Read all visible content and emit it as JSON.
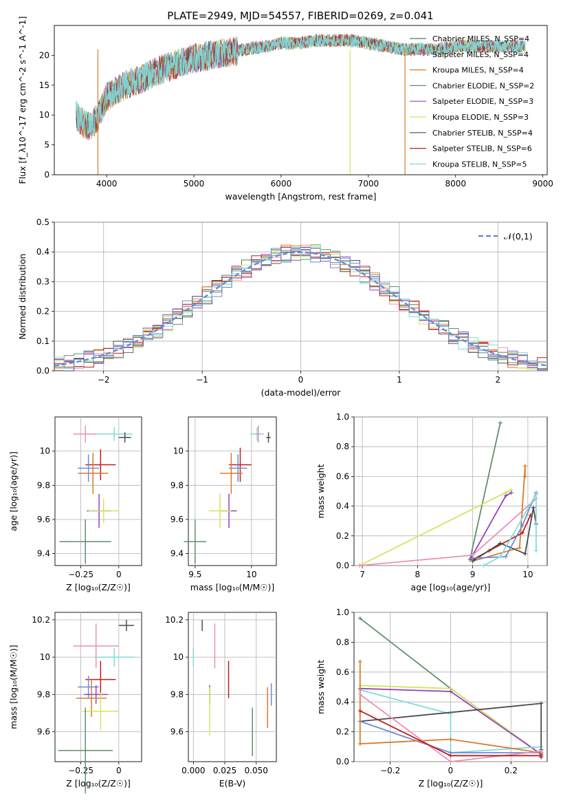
{
  "figure": {
    "title": "PLATE=2949, MJD=54557, FIBERID=0269, z=0.041"
  },
  "colors": {
    "c0": "#4d7a5c",
    "c1": "#e98fb9",
    "c2": "#d97a2b",
    "c3": "#5e8f6c",
    "c4": "#9a3fbf",
    "c5": "#cde85a",
    "c6": "#4b4b4b",
    "c7": "#c01c1c",
    "c8": "#7fdcdc",
    "blue": "#6b8bd6"
  },
  "chart_data": [
    {
      "id": "spectrum",
      "type": "line",
      "xlabel": "wavelength [Angstrom, rest frame]",
      "ylabel": "Flux [f_λ10^-17 erg cm^-2 s^-1 A^-1]",
      "xlim": [
        3400,
        9050
      ],
      "ylim": [
        0,
        25
      ],
      "xticks": [
        4000,
        5000,
        6000,
        7000,
        8000,
        9000
      ],
      "yticks": [
        0,
        5,
        10,
        15,
        20
      ],
      "grid": false,
      "legend_position": "right",
      "series": [
        {
          "name": "Chabrier MILES, N_SSP=4",
          "color": "#4d7a5c"
        },
        {
          "name": "Salpeter MILES, N_SSP=4",
          "color": "#e98fb9"
        },
        {
          "name": "Kroupa MILES, N_SSP=4",
          "color": "#d97a2b"
        },
        {
          "name": "Chabrier ELODIE, N_SSP=2",
          "color": "#5e8f6c"
        },
        {
          "name": "Salpeter ELODIE, N_SSP=3",
          "color": "#9a3fbf"
        },
        {
          "name": "Kroupa ELODIE, N_SSP=3",
          "color": "#cde85a"
        },
        {
          "name": "Chabrier STELIB, N_SSP=4",
          "color": "#4b4b4b"
        },
        {
          "name": "Salpeter STELIB, N_SSP=6",
          "color": "#c01c1c"
        },
        {
          "name": "Kroupa STELIB, N_SSP=5",
          "color": "#7fdcdc"
        }
      ],
      "continuum": {
        "x": [
          3650,
          3700,
          3800,
          3900,
          4000,
          4200,
          4400,
          4600,
          4800,
          5000,
          5200,
          5400,
          5600,
          5800,
          6000,
          6200,
          6400,
          6600,
          6800,
          7000,
          7200,
          7400,
          7600,
          7800,
          8000,
          8200,
          8400,
          8600,
          8800
        ],
        "y": [
          10,
          9,
          8,
          9.5,
          13,
          15,
          16,
          17.5,
          18.5,
          19.5,
          20,
          20.5,
          21,
          21.5,
          22,
          22,
          22.5,
          22.5,
          22.5,
          22,
          21.5,
          21,
          21,
          21,
          21.5,
          21.5,
          21.5,
          21.5,
          21.5
        ]
      },
      "drops": [
        {
          "x": 3900,
          "y": 0
        },
        {
          "x": 6790,
          "y": 0
        },
        {
          "x": 7420,
          "y": 0
        }
      ]
    },
    {
      "id": "residuals",
      "type": "histogram",
      "xlabel": "(data-model)/error",
      "ylabel": "Normed distribution",
      "xlim": [
        -2.5,
        2.5
      ],
      "ylim": [
        0,
        0.5
      ],
      "xticks": [
        -2,
        -1,
        0,
        1,
        2
      ],
      "yticks": [
        0.0,
        0.1,
        0.2,
        0.3,
        0.4,
        0.5
      ],
      "grid": true,
      "bin_width": 0.1,
      "legend": "𝒩(0,1)",
      "legend_position": "top-right",
      "reference_curve": "gaussian mean 0 sigma 1",
      "reference_color": "#6b8bd6"
    },
    {
      "id": "age-z",
      "type": "scatter",
      "xlabel": "Z [log₁₀(Z/Z☉)]",
      "ylabel": "age  [log₁₀(age/yr)]",
      "xlim": [
        -0.42,
        0.15
      ],
      "ylim": [
        9.33,
        10.2
      ],
      "xticks": [
        -0.25,
        0.0
      ],
      "yticks": [
        9.4,
        9.6,
        9.8,
        10.0
      ],
      "grid": true,
      "points": [
        {
          "x": -0.22,
          "y": 10.1,
          "xerr": 0.08,
          "yerr": 0.05,
          "color": "#e98fb9"
        },
        {
          "x": -0.03,
          "y": 10.1,
          "xerr": 0.12,
          "yerr": 0.04,
          "color": "#7fdcdc"
        },
        {
          "x": 0.04,
          "y": 10.08,
          "xerr": 0.04,
          "yerr": 0.03,
          "color": "#4b4b4b"
        },
        {
          "x": -0.12,
          "y": 9.92,
          "xerr": 0.1,
          "yerr": 0.09,
          "color": "#c01c1c"
        },
        {
          "x": -0.2,
          "y": 9.9,
          "xerr": 0.07,
          "yerr": 0.08,
          "color": "#6b8bd6"
        },
        {
          "x": -0.17,
          "y": 9.87,
          "xerr": 0.1,
          "yerr": 0.12,
          "color": "#d97a2b"
        },
        {
          "x": -0.13,
          "y": 9.65,
          "xerr": 0.08,
          "yerr": 0.1,
          "color": "#9a3fbf"
        },
        {
          "x": -0.1,
          "y": 9.65,
          "xerr": 0.1,
          "yerr": 0.07,
          "color": "#cde85a"
        },
        {
          "x": -0.22,
          "y": 9.47,
          "xerr": 0.17,
          "yerr": 0.13,
          "color": "#5e8f6c"
        }
      ]
    },
    {
      "id": "age-mass",
      "type": "scatter",
      "xlabel": "mass [log₁₀(M/M☉)]",
      "ylabel": "",
      "xlim": [
        9.44,
        10.22
      ],
      "ylim": [
        9.33,
        10.2
      ],
      "xticks": [
        9.5,
        10.0
      ],
      "yticks": [
        9.4,
        9.6,
        9.8,
        10.0
      ],
      "grid": true,
      "points": [
        {
          "x": 10.05,
          "y": 10.1,
          "xerr": 0.06,
          "yerr": 0.04,
          "color": "#7fdcdc"
        },
        {
          "x": 10.15,
          "y": 10.08,
          "xerr": 0.02,
          "yerr": 0.03,
          "color": "#4b4b4b"
        },
        {
          "x": 10.06,
          "y": 10.1,
          "xerr": 0.02,
          "yerr": 0.05,
          "color": "#e98fb9"
        },
        {
          "x": 9.9,
          "y": 9.92,
          "xerr": 0.1,
          "yerr": 0.1,
          "color": "#c01c1c"
        },
        {
          "x": 9.88,
          "y": 9.9,
          "xerr": 0.08,
          "yerr": 0.08,
          "color": "#6b8bd6"
        },
        {
          "x": 9.82,
          "y": 9.87,
          "xerr": 0.1,
          "yerr": 0.12,
          "color": "#d97a2b"
        },
        {
          "x": 9.8,
          "y": 9.65,
          "xerr": 0.07,
          "yerr": 0.1,
          "color": "#9a3fbf"
        },
        {
          "x": 9.72,
          "y": 9.65,
          "xerr": 0.1,
          "yerr": 0.1,
          "color": "#cde85a"
        },
        {
          "x": 9.5,
          "y": 9.47,
          "xerr": 0.1,
          "yerr": 0.13,
          "color": "#5e8f6c"
        }
      ]
    },
    {
      "id": "weight-age",
      "type": "line",
      "xlabel": "age  [log₁₀(age/yr)]",
      "ylabel": "mass weight",
      "xlim": [
        6.85,
        10.35
      ],
      "ylim": [
        0,
        1.0
      ],
      "xticks": [
        7,
        8,
        9,
        10
      ],
      "yticks": [
        0.0,
        0.2,
        0.4,
        0.6,
        0.8,
        1.0
      ],
      "grid": true,
      "series": [
        {
          "color": "#5e8f6c",
          "x": [
            8.95,
            9.5
          ],
          "y": [
            0.04,
            0.96
          ]
        },
        {
          "color": "#cde85a",
          "x": [
            6.95,
            9.7,
            9.6
          ],
          "y": [
            0.0,
            0.51,
            0.49
          ]
        },
        {
          "color": "#9a3fbf",
          "x": [
            8.97,
            9.6,
            9.7
          ],
          "y": [
            0.05,
            0.47,
            0.49
          ]
        },
        {
          "color": "#e98fb9",
          "x": [
            6.95,
            9.0,
            10.15
          ],
          "y": [
            0.0,
            0.07,
            0.45
          ]
        },
        {
          "color": "#d97a2b",
          "x": [
            9.0,
            9.85,
            9.95,
            9.95
          ],
          "y": [
            0.03,
            0.12,
            0.67,
            0.6
          ]
        },
        {
          "color": "#c01c1c",
          "x": [
            9.0,
            9.3,
            9.9,
            10.05
          ],
          "y": [
            0.04,
            0.1,
            0.22,
            0.34
          ]
        },
        {
          "color": "#4b4b4b",
          "x": [
            9.0,
            9.5,
            9.95,
            10.1,
            10.15
          ],
          "y": [
            0.03,
            0.15,
            0.08,
            0.39,
            0.28
          ]
        },
        {
          "color": "#6b8bd6",
          "x": [
            9.0,
            9.6,
            9.9,
            10.15
          ],
          "y": [
            0.05,
            0.06,
            0.27,
            0.49
          ]
        },
        {
          "color": "#7fdcdc",
          "x": [
            9.2,
            9.5,
            10.15,
            10.15
          ],
          "y": [
            0.0,
            0.06,
            0.48,
            0.1
          ]
        }
      ]
    },
    {
      "id": "mass-z",
      "type": "scatter",
      "xlabel": "Z [log₁₀(Z/Z☉)]",
      "ylabel": "mass [log₁₀(M/M☉)]",
      "xlim": [
        -0.42,
        0.15
      ],
      "ylim": [
        9.44,
        10.24
      ],
      "xticks": [
        -0.25,
        0.0
      ],
      "yticks": [
        9.6,
        9.8,
        10.0,
        10.2
      ],
      "grid": true,
      "points": [
        {
          "x": 0.05,
          "y": 10.17,
          "xerr": 0.05,
          "yerr": 0.03,
          "color": "#4b4b4b"
        },
        {
          "x": -0.15,
          "y": 10.06,
          "xerr": 0.15,
          "yerr": 0.12,
          "color": "#e98fb9"
        },
        {
          "x": -0.03,
          "y": 10.0,
          "xerr": 0.13,
          "yerr": 0.05,
          "color": "#7fdcdc"
        },
        {
          "x": -0.12,
          "y": 9.88,
          "xerr": 0.1,
          "yerr": 0.1,
          "color": "#c01c1c"
        },
        {
          "x": -0.2,
          "y": 9.84,
          "xerr": 0.07,
          "yerr": 0.06,
          "color": "#6b8bd6"
        },
        {
          "x": -0.15,
          "y": 9.8,
          "xerr": 0.08,
          "yerr": 0.05,
          "color": "#9a3fbf"
        },
        {
          "x": -0.18,
          "y": 9.78,
          "xerr": 0.1,
          "yerr": 0.1,
          "color": "#d97a2b"
        },
        {
          "x": -0.12,
          "y": 9.71,
          "xerr": 0.12,
          "yerr": 0.1,
          "color": "#cde85a"
        },
        {
          "x": -0.22,
          "y": 9.5,
          "xerr": 0.18,
          "yerr": 0.23,
          "color": "#5e8f6c"
        }
      ]
    },
    {
      "id": "mass-ebv",
      "type": "scatter",
      "xlabel": "E(B-V)",
      "ylabel": "",
      "xlim": [
        -0.004,
        0.066
      ],
      "ylim": [
        9.44,
        10.24
      ],
      "xticks": [
        0.0,
        0.025,
        0.05
      ],
      "xticklabels": [
        "0.000",
        "0.025",
        "0.050"
      ],
      "yticks": [
        9.6,
        9.8,
        10.0,
        10.2
      ],
      "grid": true,
      "points": [
        {
          "x": 0.007,
          "y": 10.17,
          "xerr": 0,
          "yerr": 0.03,
          "color": "#4b4b4b"
        },
        {
          "x": 0.017,
          "y": 10.06,
          "xerr": 0,
          "yerr": 0.12,
          "color": "#e98fb9"
        },
        {
          "x": 0.0,
          "y": 10.0,
          "xerr": 0,
          "yerr": 0.05,
          "color": "#7fdcdc"
        },
        {
          "x": 0.028,
          "y": 9.88,
          "xerr": 0,
          "yerr": 0.1,
          "color": "#c01c1c"
        },
        {
          "x": 0.062,
          "y": 9.8,
          "xerr": 0,
          "yerr": 0.06,
          "color": "#6b8bd6"
        },
        {
          "x": 0.013,
          "y": 9.8,
          "xerr": 0,
          "yerr": 0.05,
          "color": "#9a3fbf"
        },
        {
          "x": 0.059,
          "y": 9.73,
          "xerr": 0,
          "yerr": 0.11,
          "color": "#d97a2b"
        },
        {
          "x": 0.013,
          "y": 9.71,
          "xerr": 0,
          "yerr": 0.13,
          "color": "#cde85a"
        },
        {
          "x": 0.047,
          "y": 9.6,
          "xerr": 0,
          "yerr": 0.13,
          "color": "#5e8f6c"
        }
      ]
    },
    {
      "id": "weight-z",
      "type": "line",
      "xlabel": "Z [log₁₀(Z/Z☉)]",
      "ylabel": "mass weight",
      "xlim": [
        -0.32,
        0.32
      ],
      "ylim": [
        0,
        1.0
      ],
      "xticks": [
        -0.2,
        0.0,
        0.2
      ],
      "yticks": [
        0.0,
        0.2,
        0.4,
        0.6,
        0.8,
        1.0
      ],
      "grid": true,
      "series": [
        {
          "color": "#5e8f6c",
          "x": [
            -0.3,
            0.0,
            0.3
          ],
          "y": [
            0.96,
            0.49,
            0.05
          ]
        },
        {
          "color": "#cde85a",
          "x": [
            -0.3,
            0.0,
            0.3
          ],
          "y": [
            0.51,
            0.49,
            0.05
          ]
        },
        {
          "color": "#9a3fbf",
          "x": [
            -0.3,
            0.0,
            0.3
          ],
          "y": [
            0.49,
            0.47,
            0.05
          ]
        },
        {
          "color": "#7fdcdc",
          "x": [
            -0.3,
            0.0,
            0.0,
            0.3
          ],
          "y": [
            0.48,
            0.32,
            0.06,
            0.1
          ]
        },
        {
          "color": "#4b4b4b",
          "x": [
            -0.3,
            0.3,
            0.3,
            0.3
          ],
          "y": [
            0.27,
            0.39,
            0.08,
            0.03
          ]
        },
        {
          "color": "#6b8bd6",
          "x": [
            -0.3,
            0.0,
            0.3
          ],
          "y": [
            0.27,
            0.06,
            0.06
          ]
        },
        {
          "color": "#d97a2b",
          "x": [
            -0.3,
            -0.3,
            0.0,
            0.3
          ],
          "y": [
            0.67,
            0.12,
            0.15,
            0.06
          ]
        },
        {
          "color": "#e98fb9",
          "x": [
            -0.3,
            0.0,
            0.3
          ],
          "y": [
            0.45,
            0.0,
            0.07
          ]
        },
        {
          "color": "#c01c1c",
          "x": [
            -0.3,
            0.0,
            0.3
          ],
          "y": [
            0.34,
            0.04,
            0.04
          ]
        }
      ]
    }
  ]
}
